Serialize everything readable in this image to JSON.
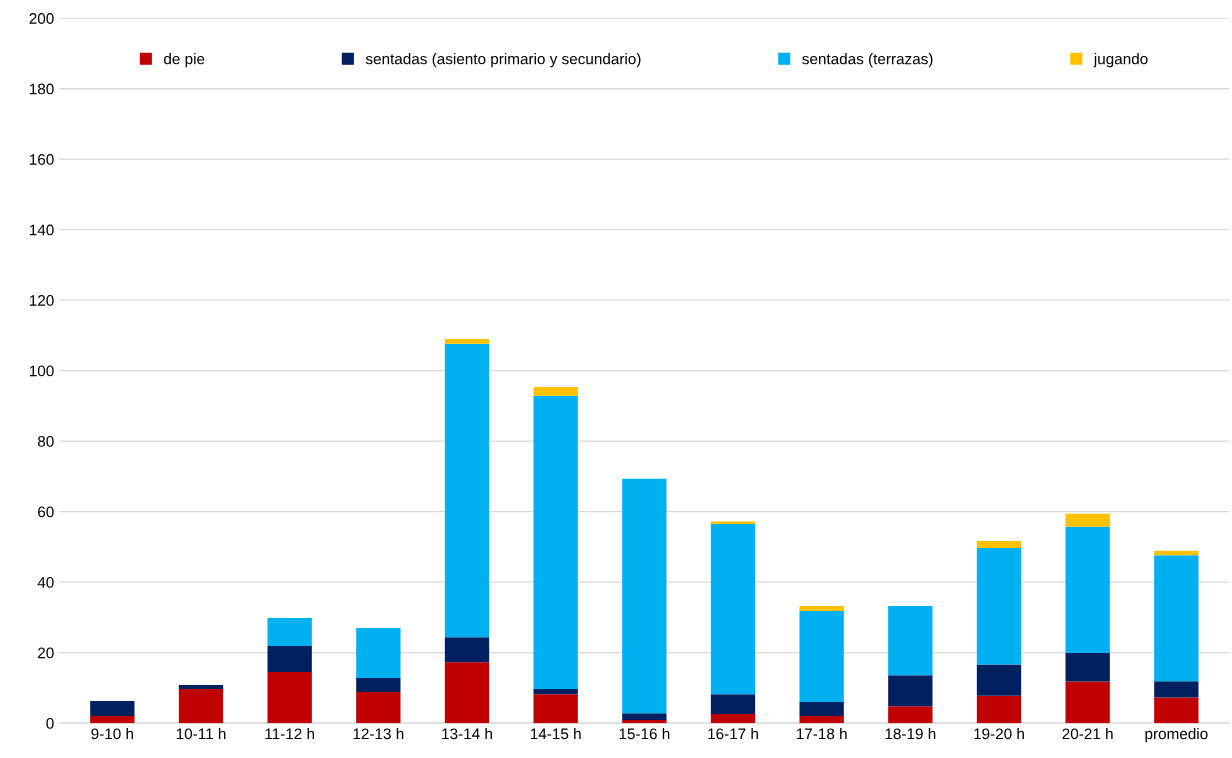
{
  "chart_data": {
    "type": "bar",
    "stacked": true,
    "categories": [
      "9-10 h",
      "10-11 h",
      "11-12 h",
      "12-13 h",
      "13-14 h",
      "14-15 h",
      "15-16 h",
      "16-17 h",
      "17-18 h",
      "18-19 h",
      "19-20 h",
      "20-21 h",
      "promedio"
    ],
    "series": [
      {
        "name": "de pie",
        "color": "#c00000",
        "values": [
          2.0,
          9.7,
          14.5,
          8.8,
          17.3,
          8.2,
          0.9,
          2.6,
          2.0,
          4.8,
          7.8,
          11.8,
          7.3
        ]
      },
      {
        "name": "sentadas (asiento primario y secundario)",
        "color": "#002060",
        "values": [
          4.3,
          1.1,
          7.4,
          4.0,
          7.1,
          1.5,
          1.9,
          5.6,
          4.0,
          8.8,
          8.8,
          8.1,
          4.6
        ]
      },
      {
        "name": "sentadas (terrazas)",
        "color": "#00b0f0",
        "values": [
          null,
          null,
          7.9,
          14.2,
          83.2,
          83.2,
          66.5,
          48.3,
          25.8,
          19.6,
          33.1,
          35.8,
          35.7
        ]
      },
      {
        "name": "jugando",
        "color": "#ffc000",
        "values": [
          null,
          null,
          null,
          null,
          1.4,
          2.5,
          null,
          0.7,
          1.4,
          null,
          2.0,
          3.7,
          1.3
        ]
      }
    ],
    "ylim": [
      0,
      200
    ],
    "yticks": [
      0,
      20,
      40,
      60,
      80,
      100,
      120,
      140,
      160,
      180,
      200
    ],
    "grid": "y",
    "legend": "top"
  }
}
